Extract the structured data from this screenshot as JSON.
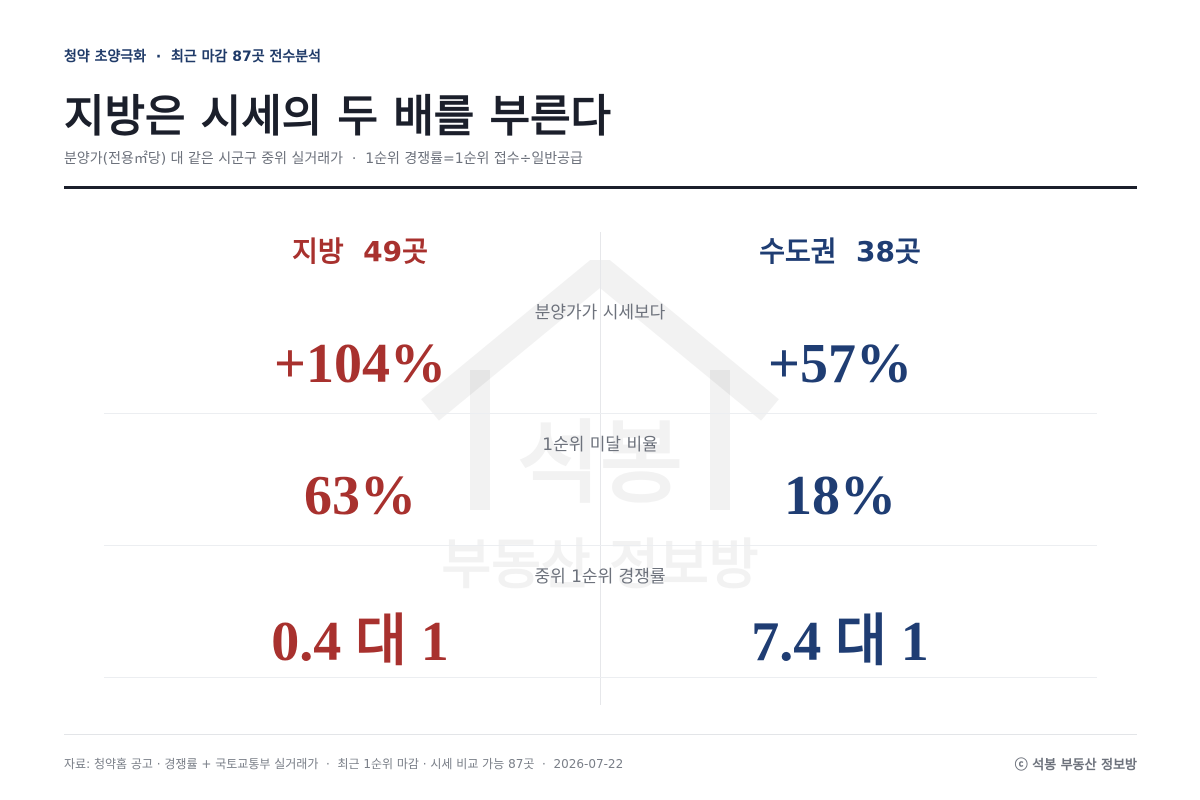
{
  "header": {
    "kicker": "청약 초양극화  ·  최근 마감 87곳 전수분석",
    "title": "지방은 시세의 두 배를 부른다",
    "subtitle": "분양가(전용㎡당) 대 같은 시군구 중위 실거래가  ·  1순위 경쟁률=1순위 접수÷일반공급"
  },
  "columns": [
    "지방  49곳",
    "수도권  38곳"
  ],
  "rows": [
    {
      "label": "분양가가 시세보다",
      "values": [
        "+104%",
        "+57%"
      ]
    },
    {
      "label": "1순위 미달 비율",
      "values": [
        "63%",
        "18%"
      ]
    },
    {
      "label": "중위 1순위 경쟁률",
      "values": [
        "0.4 대 1",
        "7.4 대 1"
      ]
    }
  ],
  "watermark": [
    "석봉",
    "부동산 정보방"
  ],
  "footer": {
    "source": "자료: 청약홈 공고 · 경쟁률 + 국토교통부 실거래가  ·  최근 1순위 마감 · 시세 비교 가능 87곳  ·  2026-07-22",
    "brand": "ⓒ 석봉 부동산 정보방"
  }
}
